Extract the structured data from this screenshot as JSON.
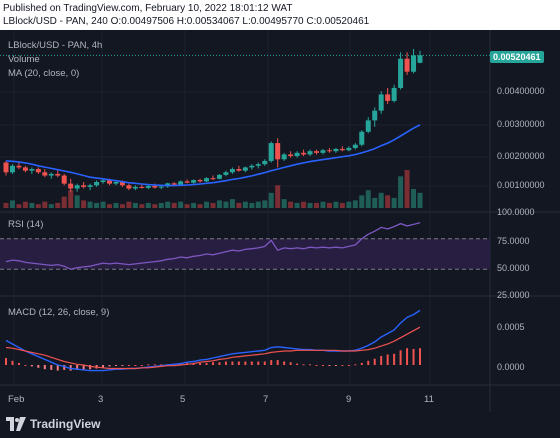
{
  "header": {
    "published": "Published on TradingView.com, February 10, 2022 18:01:12 WAT",
    "symbol_line": "LBlock/USD - PAN, 240",
    "ohlc": [
      {
        "k": "O:",
        "v": "0.00497506"
      },
      {
        "k": "H:",
        "v": "0.00534067"
      },
      {
        "k": "L:",
        "v": "0.00495770"
      },
      {
        "k": "C:",
        "v": "0.00520461"
      }
    ]
  },
  "legend": {
    "symbol": "LBlock/USD - PAN, 4h",
    "volume": "Volume",
    "ma": "MA (20, close, 0)",
    "rsi": "RSI (14)",
    "macd": "MACD (12, 26, close, 9)"
  },
  "price_axis": {
    "current_price": "0.00520461",
    "ticks": [
      "0.00400000",
      "0.00300000",
      "0.00200000",
      "0.00100000"
    ]
  },
  "rsi_axis": {
    "ticks": [
      "100.0000",
      "75.0000",
      "50.0000",
      "25.0000"
    ]
  },
  "macd_axis": {
    "ticks": [
      "0.0005",
      "0.0000"
    ]
  },
  "x_axis": {
    "ticks": [
      "Feb",
      "3",
      "5",
      "7",
      "9",
      "11"
    ]
  },
  "footer": {
    "brand": "TradingView"
  },
  "colors": {
    "background": "#131722",
    "up": "#26a69a",
    "down": "#ef5350",
    "ma": "#2962ff",
    "rsi": "#7e57c2",
    "rsi_band": "#2a1f45"
  },
  "chart_data": {
    "type": "candlestick",
    "timeframe": "4h",
    "price_range": [
      0.0005,
      0.0058
    ],
    "candles_ohlc": [
      [
        0.0019,
        0.00195,
        0.0015,
        0.0016
      ],
      [
        0.0016,
        0.00185,
        0.00155,
        0.0018
      ],
      [
        0.0018,
        0.0019,
        0.0017,
        0.00175
      ],
      [
        0.00175,
        0.0018,
        0.0016,
        0.00165
      ],
      [
        0.00165,
        0.00175,
        0.00155,
        0.0017
      ],
      [
        0.0017,
        0.00175,
        0.00155,
        0.0016
      ],
      [
        0.0016,
        0.0017,
        0.00145,
        0.0015
      ],
      [
        0.0015,
        0.0016,
        0.0014,
        0.00155
      ],
      [
        0.00155,
        0.00165,
        0.00145,
        0.0015
      ],
      [
        0.0015,
        0.00155,
        0.0012,
        0.00125
      ],
      [
        0.00125,
        0.0014,
        0.001,
        0.0011
      ],
      [
        0.0011,
        0.00125,
        0.001,
        0.0012
      ],
      [
        0.0012,
        0.0013,
        0.0011,
        0.00115
      ],
      [
        0.00115,
        0.00125,
        0.00105,
        0.0012
      ],
      [
        0.0012,
        0.00135,
        0.00115,
        0.0013
      ],
      [
        0.0013,
        0.0014,
        0.00125,
        0.00135
      ],
      [
        0.00135,
        0.0014,
        0.0012,
        0.00125
      ],
      [
        0.00125,
        0.00135,
        0.0012,
        0.0013
      ],
      [
        0.0013,
        0.00135,
        0.00115,
        0.0012
      ],
      [
        0.0012,
        0.00125,
        0.00105,
        0.0011
      ],
      [
        0.0011,
        0.0012,
        0.00105,
        0.00115
      ],
      [
        0.00115,
        0.00125,
        0.0011,
        0.00112
      ],
      [
        0.00112,
        0.0012,
        0.00108,
        0.00118
      ],
      [
        0.00118,
        0.00125,
        0.0011,
        0.00113
      ],
      [
        0.00113,
        0.0012,
        0.00108,
        0.00116
      ],
      [
        0.00116,
        0.00128,
        0.00112,
        0.00126
      ],
      [
        0.00126,
        0.0013,
        0.00118,
        0.00122
      ],
      [
        0.00122,
        0.00135,
        0.0012,
        0.00132
      ],
      [
        0.00132,
        0.00138,
        0.00126,
        0.00128
      ],
      [
        0.00128,
        0.00138,
        0.00125,
        0.00136
      ],
      [
        0.00136,
        0.0014,
        0.00128,
        0.00132
      ],
      [
        0.00132,
        0.00145,
        0.0013,
        0.00142
      ],
      [
        0.00142,
        0.0015,
        0.00136,
        0.0014
      ],
      [
        0.0014,
        0.00155,
        0.00138,
        0.00152
      ],
      [
        0.00152,
        0.00165,
        0.00148,
        0.0016
      ],
      [
        0.0016,
        0.00175,
        0.00155,
        0.0017
      ],
      [
        0.0017,
        0.0018,
        0.00162,
        0.00165
      ],
      [
        0.00165,
        0.00178,
        0.0016,
        0.00175
      ],
      [
        0.00175,
        0.00185,
        0.00168,
        0.0018
      ],
      [
        0.0018,
        0.0019,
        0.00172,
        0.00185
      ],
      [
        0.00185,
        0.002,
        0.0018,
        0.00195
      ],
      [
        0.00195,
        0.00255,
        0.0019,
        0.0025
      ],
      [
        0.0025,
        0.00265,
        0.00175,
        0.002
      ],
      [
        0.002,
        0.0022,
        0.00195,
        0.00215
      ],
      [
        0.00215,
        0.00225,
        0.00205,
        0.0021
      ],
      [
        0.0021,
        0.00225,
        0.00205,
        0.0022
      ],
      [
        0.0022,
        0.0023,
        0.0021,
        0.00215
      ],
      [
        0.00215,
        0.0023,
        0.0021,
        0.00225
      ],
      [
        0.00225,
        0.0023,
        0.00215,
        0.0022
      ],
      [
        0.0022,
        0.00232,
        0.00215,
        0.00228
      ],
      [
        0.00228,
        0.00235,
        0.0022,
        0.00225
      ],
      [
        0.00225,
        0.00235,
        0.0022,
        0.00232
      ],
      [
        0.00232,
        0.0024,
        0.00225,
        0.00228
      ],
      [
        0.00228,
        0.0024,
        0.00225,
        0.00235
      ],
      [
        0.00235,
        0.0025,
        0.0023,
        0.00245
      ],
      [
        0.00245,
        0.0029,
        0.0024,
        0.00285
      ],
      [
        0.00285,
        0.0033,
        0.0028,
        0.0032
      ],
      [
        0.0032,
        0.0036,
        0.003,
        0.0035
      ],
      [
        0.0035,
        0.0041,
        0.0034,
        0.004
      ],
      [
        0.004,
        0.0042,
        0.0037,
        0.0038
      ],
      [
        0.0038,
        0.0043,
        0.00375,
        0.0042
      ],
      [
        0.0042,
        0.0053,
        0.00415,
        0.0051
      ],
      [
        0.0051,
        0.0053,
        0.0046,
        0.0047
      ],
      [
        0.0047,
        0.0054,
        0.00465,
        0.0052
      ],
      [
        0.00497506,
        0.00534067,
        0.0049577,
        0.00520461
      ]
    ],
    "ma_20": [
      0.00195,
      0.00194,
      0.00192,
      0.00189,
      0.00185,
      0.0018,
      0.00176,
      0.00172,
      0.00168,
      0.00164,
      0.0016,
      0.00155,
      0.0015,
      0.00145,
      0.00142,
      0.0014,
      0.00137,
      0.00134,
      0.00131,
      0.00128,
      0.00126,
      0.00124,
      0.00122,
      0.00121,
      0.0012,
      0.00119,
      0.00119,
      0.0012,
      0.00121,
      0.00122,
      0.00124,
      0.00126,
      0.00128,
      0.00131,
      0.00134,
      0.00138,
      0.00141,
      0.00145,
      0.00149,
      0.00154,
      0.00159,
      0.00165,
      0.0017,
      0.00175,
      0.0018,
      0.00185,
      0.00189,
      0.00193,
      0.00196,
      0.00199,
      0.00202,
      0.00205,
      0.00208,
      0.00211,
      0.00215,
      0.0022,
      0.00226,
      0.00233,
      0.00242,
      0.0025,
      0.0026,
      0.00272,
      0.00284,
      0.00296,
      0.00306
    ],
    "volume": [
      4,
      6,
      3,
      5,
      4,
      3,
      5,
      3,
      4,
      9,
      14,
      10,
      6,
      5,
      4,
      5,
      3,
      4,
      3,
      5,
      4,
      3,
      4,
      3,
      4,
      5,
      4,
      5,
      3,
      4,
      3,
      5,
      4,
      6,
      5,
      7,
      4,
      5,
      4,
      5,
      6,
      12,
      18,
      7,
      5,
      4,
      5,
      4,
      4,
      5,
      4,
      5,
      4,
      5,
      6,
      10,
      14,
      8,
      12,
      10,
      8,
      25,
      30,
      15,
      12
    ],
    "rsi_14": [
      40,
      42,
      41,
      39,
      38,
      37,
      36,
      35,
      36,
      34,
      30,
      32,
      33,
      34,
      36,
      38,
      37,
      38,
      37,
      36,
      37,
      38,
      39,
      40,
      41,
      43,
      44,
      46,
      45,
      47,
      48,
      50,
      49,
      51,
      53,
      55,
      54,
      56,
      57,
      58,
      60,
      68,
      55,
      58,
      57,
      58,
      57,
      59,
      58,
      59,
      58,
      59,
      58,
      60,
      62,
      70,
      76,
      80,
      85,
      83,
      86,
      90,
      87,
      89,
      91
    ],
    "macd_line": [
      0.00035,
      0.0003,
      0.00025,
      0.0002,
      0.00016,
      0.00012,
      8e-05,
      4e-05,
      0.0,
      -2e-05,
      -5e-05,
      -6e-05,
      -7e-05,
      -8e-05,
      -8e-05,
      -8e-05,
      -7e-05,
      -6e-05,
      -6e-05,
      -5e-05,
      -5e-05,
      -4e-05,
      -3e-05,
      -2e-05,
      -1e-05,
      0.0,
      1e-05,
      2e-05,
      4e-05,
      5e-05,
      7e-05,
      8e-05,
      0.0001,
      0.00012,
      0.00014,
      0.00016,
      0.00017,
      0.00018,
      0.00019,
      0.0002,
      0.00021,
      0.00025,
      0.00026,
      0.00025,
      0.00024,
      0.00023,
      0.00022,
      0.00022,
      0.00021,
      0.00021,
      0.0002,
      0.0002,
      0.0002,
      0.0002,
      0.00021,
      0.00024,
      0.00028,
      0.00033,
      0.0004,
      0.00045,
      0.0005,
      0.0006,
      0.00068,
      0.00072,
      0.00078
    ],
    "macd_signal": [
      0.00025,
      0.00024,
      0.00022,
      0.0002,
      0.00018,
      0.00016,
      0.00014,
      0.00011,
      8e-05,
      5e-05,
      3e-05,
      1e-05,
      0.0,
      -2e-05,
      -3e-05,
      -4e-05,
      -5e-05,
      -5e-05,
      -5e-05,
      -5e-05,
      -5e-05,
      -4e-05,
      -4e-05,
      -3e-05,
      -2e-05,
      -1e-05,
      -1e-05,
      0.0,
      1e-05,
      2e-05,
      4e-05,
      5e-05,
      6e-05,
      8e-05,
      9e-05,
      0.00011,
      0.00012,
      0.00013,
      0.00014,
      0.00015,
      0.00016,
      0.00018,
      0.00019,
      0.0002,
      0.0002,
      0.00021,
      0.00021,
      0.00021,
      0.00021,
      0.00021,
      0.00021,
      0.00021,
      0.0002,
      0.0002,
      0.0002,
      0.00021,
      0.00022,
      0.00024,
      0.00027,
      0.0003,
      0.00034,
      0.00039,
      0.00044,
      0.00049,
      0.00054
    ]
  }
}
